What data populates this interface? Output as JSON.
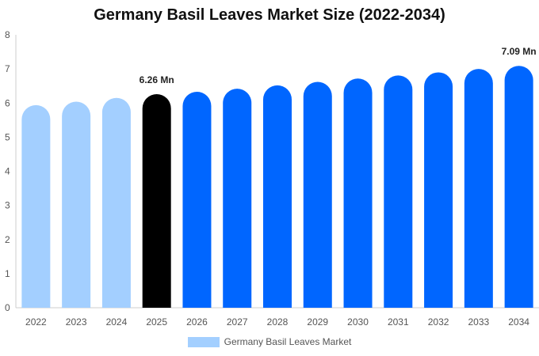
{
  "chart_data": {
    "type": "bar",
    "title": "Germany Basil Leaves Market Size (2022-2034)",
    "categories": [
      "2022",
      "2023",
      "2024",
      "2025",
      "2026",
      "2027",
      "2028",
      "2029",
      "2030",
      "2031",
      "2032",
      "2033",
      "2034"
    ],
    "series": [
      {
        "name": "Germany Basil Leaves Market",
        "values": [
          5.94,
          6.04,
          6.15,
          6.26,
          6.33,
          6.42,
          6.52,
          6.62,
          6.72,
          6.81,
          6.9,
          7.0,
          7.09
        ]
      }
    ],
    "bar_colors": [
      "#a3cfff",
      "#a3cfff",
      "#a3cfff",
      "#000000",
      "#0066ff",
      "#0066ff",
      "#0066ff",
      "#0066ff",
      "#0066ff",
      "#0066ff",
      "#0066ff",
      "#0066ff",
      "#0066ff"
    ],
    "data_labels": [
      {
        "category": "2025",
        "text": "6.26 Mn"
      },
      {
        "category": "2034",
        "text": "7.09 Mn"
      }
    ],
    "ylim": [
      0,
      8
    ],
    "yticks": [
      "0",
      "1",
      "2",
      "3",
      "4",
      "5",
      "6",
      "7",
      "8"
    ],
    "xlabel": "",
    "ylabel": "",
    "grid": false,
    "legend_position": "bottom",
    "legend_color": "#a3cfff"
  }
}
